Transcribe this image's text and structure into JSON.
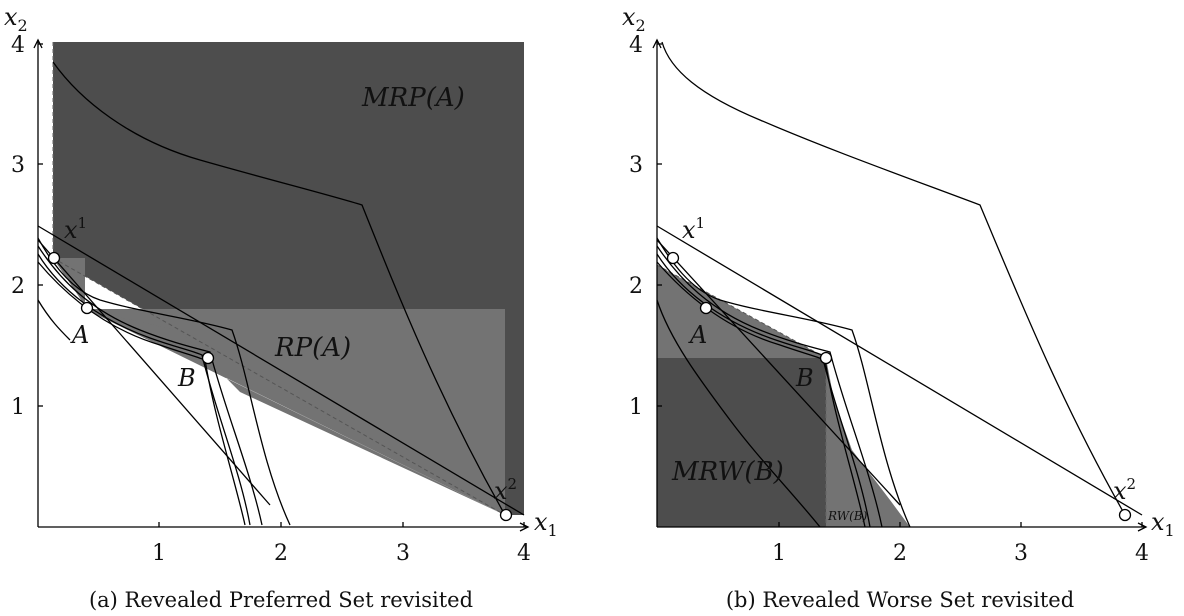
{
  "panels": [
    {
      "id": "a",
      "caption": "(a) Revealed Preferred Set revisited",
      "y_axis_label": "x",
      "y_axis_sub": "2",
      "x_axis_label": "x",
      "x_axis_sub": "1",
      "ticks": [
        "1",
        "2",
        "3",
        "4"
      ],
      "region_labels": {
        "main": "MRP(A)",
        "secondary": "RP(A)"
      },
      "point_labels": {
        "x1": "x",
        "x1_sup": "1",
        "A": "A",
        "B": "B",
        "x2": "x",
        "x2_sup": "2"
      },
      "colors": {
        "dark_region": "#4d4d4d",
        "light_region": "#737373"
      }
    },
    {
      "id": "b",
      "caption": "(b) Revealed Worse Set revisited",
      "y_axis_label": "x",
      "y_axis_sub": "2",
      "x_axis_label": "x",
      "x_axis_sub": "1",
      "ticks": [
        "1",
        "2",
        "3",
        "4"
      ],
      "region_labels": {
        "main": "MRW(B)",
        "secondary": "RW(B)"
      },
      "point_labels": {
        "x1": "x",
        "x1_sup": "1",
        "A": "A",
        "B": "B",
        "x2": "x",
        "x2_sup": "2"
      },
      "colors": {
        "dark_region": "#4d4d4d",
        "light_region": "#737373"
      }
    }
  ]
}
